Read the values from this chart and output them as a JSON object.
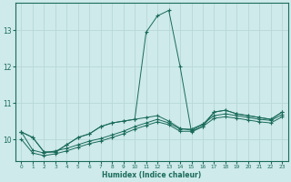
{
  "xlabel": "Humidex (Indice chaleur)",
  "background_color": "#ceeaea",
  "grid_color": "#b8d8d8",
  "line_color": "#1a6b5a",
  "x": [
    0,
    1,
    2,
    3,
    4,
    5,
    6,
    7,
    8,
    9,
    10,
    11,
    12,
    13,
    14,
    15,
    16,
    17,
    18,
    19,
    20,
    21,
    22,
    23
  ],
  "line1": [
    10.2,
    10.05,
    9.65,
    9.65,
    9.85,
    10.05,
    10.15,
    10.35,
    10.45,
    10.5,
    10.55,
    12.95,
    13.4,
    13.55,
    12.0,
    10.2,
    10.35,
    10.75,
    10.8,
    10.7,
    10.65,
    10.6,
    10.55,
    10.75
  ],
  "line2": [
    10.2,
    10.05,
    9.65,
    9.65,
    9.85,
    10.05,
    10.15,
    10.35,
    10.45,
    10.5,
    10.55,
    10.6,
    10.65,
    10.5,
    10.3,
    10.25,
    10.4,
    10.75,
    10.8,
    10.7,
    10.65,
    10.6,
    10.55,
    10.75
  ],
  "line3": [
    10.2,
    9.7,
    9.62,
    9.68,
    9.75,
    9.85,
    9.95,
    10.02,
    10.12,
    10.22,
    10.35,
    10.45,
    10.55,
    10.45,
    10.28,
    10.28,
    10.42,
    10.65,
    10.7,
    10.65,
    10.6,
    10.55,
    10.52,
    10.68
  ],
  "line4": [
    10.0,
    9.62,
    9.55,
    9.6,
    9.68,
    9.78,
    9.88,
    9.95,
    10.05,
    10.15,
    10.28,
    10.38,
    10.48,
    10.4,
    10.22,
    10.22,
    10.35,
    10.58,
    10.62,
    10.58,
    10.53,
    10.48,
    10.45,
    10.62
  ],
  "ylim": [
    9.4,
    13.75
  ],
  "yticks": [
    10,
    11,
    12,
    13
  ],
  "xticks": [
    0,
    1,
    2,
    3,
    4,
    5,
    6,
    7,
    8,
    9,
    10,
    11,
    12,
    13,
    14,
    15,
    16,
    17,
    18,
    19,
    20,
    21,
    22,
    23
  ]
}
